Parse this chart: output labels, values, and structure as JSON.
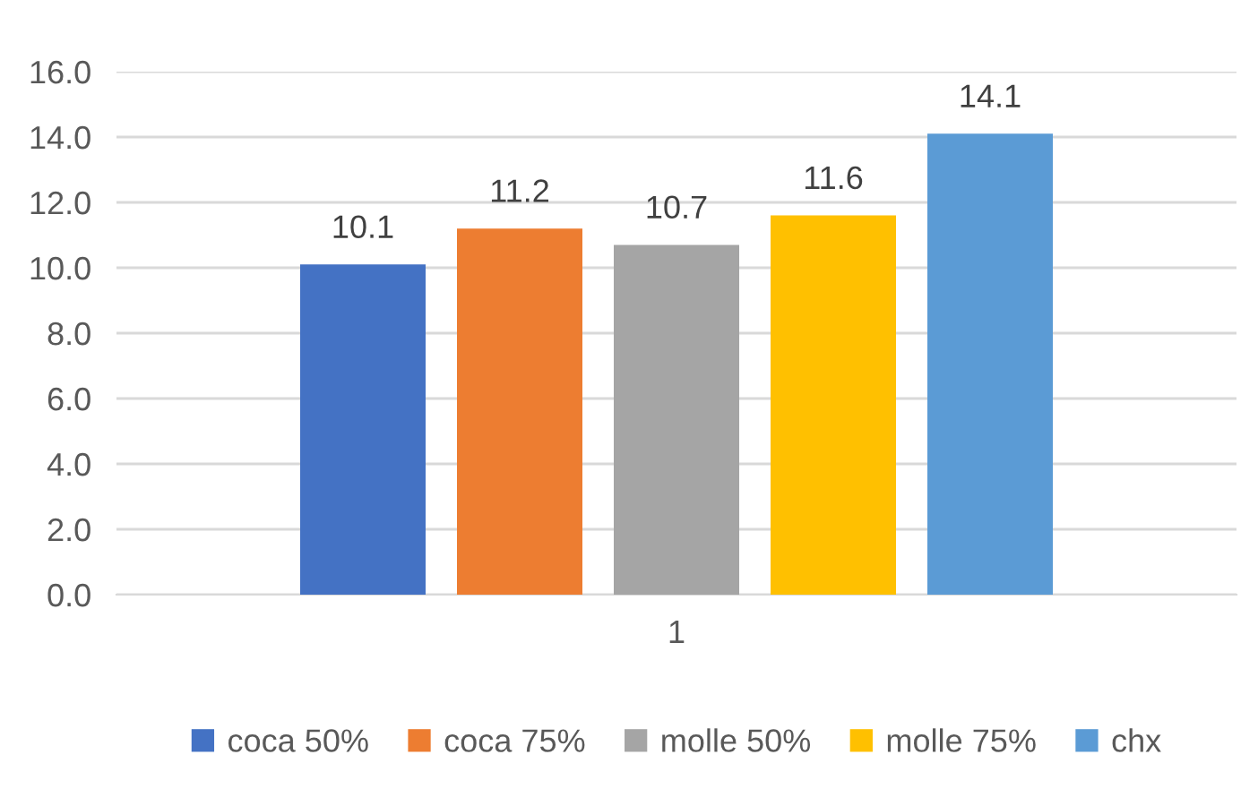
{
  "chart_data": {
    "type": "bar",
    "categories": [
      "1"
    ],
    "series": [
      {
        "name": "coca 50%",
        "color": "#4472c4",
        "values": [
          10.1
        ]
      },
      {
        "name": "coca 75%",
        "color": "#ed7d31",
        "values": [
          11.2
        ]
      },
      {
        "name": "molle 50%",
        "color": "#a5a5a5",
        "values": [
          10.7
        ]
      },
      {
        "name": "molle 75%",
        "color": "#ffc000",
        "values": [
          11.6
        ]
      },
      {
        "name": "chx",
        "color": "#5b9bd5",
        "values": [
          14.1
        ]
      }
    ],
    "ylim": [
      0,
      16
    ],
    "yticks": [
      {
        "value": 0,
        "label": "0.0"
      },
      {
        "value": 2,
        "label": "2.0"
      },
      {
        "value": 4,
        "label": "4.0"
      },
      {
        "value": 6,
        "label": "6.0"
      },
      {
        "value": 8,
        "label": "8.0"
      },
      {
        "value": 10,
        "label": "10.0"
      },
      {
        "value": 12,
        "label": "12.0"
      },
      {
        "value": 14,
        "label": "14.0"
      },
      {
        "value": 16,
        "label": "16.0"
      }
    ],
    "grid": "y",
    "legend": "bottom",
    "data_labels": true
  }
}
